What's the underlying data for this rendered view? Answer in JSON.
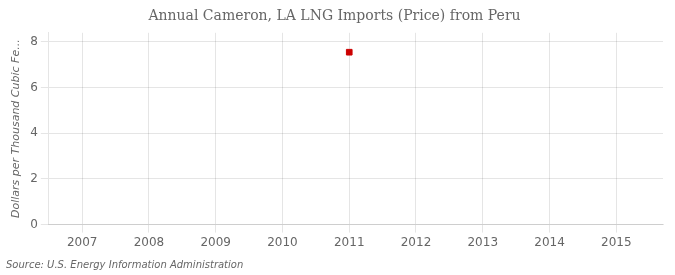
{
  "chart_data": {
    "type": "scatter",
    "title": "Annual Cameron, LA LNG Imports (Price) from Peru",
    "ylabel": "Dollars per Thousand Cubic Fe...",
    "source": "Source: U.S. Energy Information Administration",
    "x": [
      2011
    ],
    "values": [
      7.55
    ],
    "color": "#cc0000",
    "marker": "square",
    "xlim": [
      2006.5,
      2015.7
    ],
    "xticks": [
      2007,
      2008,
      2009,
      2010,
      2011,
      2012,
      2013,
      2014,
      2015
    ],
    "ylim": [
      0,
      8.4
    ],
    "yticks": [
      0,
      2,
      4,
      6,
      8
    ],
    "grid": true
  }
}
